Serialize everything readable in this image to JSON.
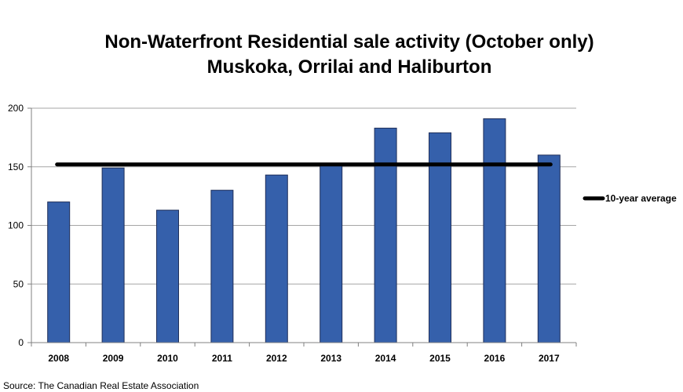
{
  "chart_data": {
    "type": "bar",
    "title": "Non-Waterfront Residential sale activity (October only)",
    "subtitle": "Muskoka, Orrilai and Haliburton",
    "categories": [
      "2008",
      "2009",
      "2010",
      "2011",
      "2012",
      "2013",
      "2014",
      "2015",
      "2016",
      "2017"
    ],
    "series": [
      {
        "values": [
          120,
          149,
          113,
          130,
          143,
          152,
          183,
          179,
          191,
          160
        ],
        "color": "#3560ab"
      }
    ],
    "reference_line": {
      "name": "10-year average",
      "value": 152,
      "color": "#000000"
    },
    "ylim": [
      0,
      200
    ],
    "yticks": [
      0,
      50,
      100,
      150,
      200
    ],
    "grid": true,
    "legend_position": "right",
    "xlabel": "",
    "ylabel": ""
  },
  "source": "Source: The Canadian Real Estate Association"
}
